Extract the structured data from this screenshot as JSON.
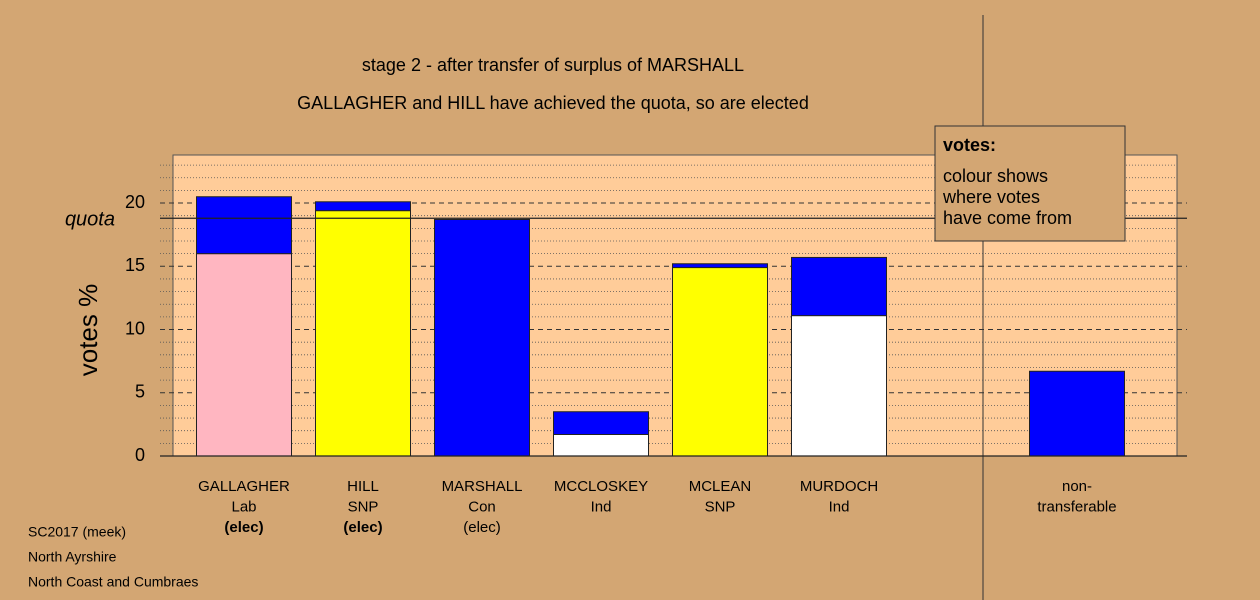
{
  "chart_data": {
    "type": "stacked_bar",
    "title": "stage 2 - after transfer of surplus of MARSHALL",
    "subtitle": "GALLAGHER and HILL have achieved the quota, so are elected",
    "y_label": "votes %",
    "ylim": [
      0,
      23.8
    ],
    "yticks": [
      0,
      5,
      10,
      15,
      20
    ],
    "minor_yticks": [
      1,
      2,
      3,
      4,
      6,
      7,
      8,
      9,
      11,
      12,
      13,
      14,
      16,
      17,
      18,
      19,
      21,
      22,
      23
    ],
    "grid": true,
    "quota": {
      "label": "quota",
      "value": 18.8
    },
    "categories": [
      {
        "lines": [
          "GALLAGHER",
          "Lab",
          "(elec)"
        ],
        "bold_last": true
      },
      {
        "lines": [
          "HILL",
          "SNP",
          "(elec)"
        ],
        "bold_last": true
      },
      {
        "lines": [
          "MARSHALL",
          "Con",
          "(elec)"
        ],
        "bold_last": false
      },
      {
        "lines": [
          "MCCLOSKEY",
          "Ind"
        ],
        "bold_last": false
      },
      {
        "lines": [
          "MCLEAN",
          "SNP"
        ],
        "bold_last": false
      },
      {
        "lines": [
          "MURDOCH",
          "Ind"
        ],
        "bold_last": false
      },
      {
        "lines": [
          "non-",
          "transferable"
        ],
        "bold_last": false,
        "separated": true
      }
    ],
    "stacks": [
      {
        "segments": [
          {
            "value": 16.0,
            "color": "#FFB6C1"
          },
          {
            "value": 4.5,
            "color": "#0000FF"
          }
        ]
      },
      {
        "segments": [
          {
            "value": 19.4,
            "color": "#FFFF00"
          },
          {
            "value": 0.7,
            "color": "#0000FF"
          }
        ]
      },
      {
        "segments": [
          {
            "value": 18.7,
            "color": "#0000FF"
          }
        ]
      },
      {
        "segments": [
          {
            "value": 1.7,
            "color": "#FFFFFF"
          },
          {
            "value": 1.8,
            "color": "#0000FF"
          }
        ]
      },
      {
        "segments": [
          {
            "value": 14.9,
            "color": "#FFFF00"
          },
          {
            "value": 0.3,
            "color": "#0000FF"
          }
        ]
      },
      {
        "segments": [
          {
            "value": 11.1,
            "color": "#FFFFFF"
          },
          {
            "value": 4.6,
            "color": "#0000FF"
          }
        ]
      },
      {
        "segments": [
          {
            "value": 6.7,
            "color": "#0000FF"
          }
        ]
      }
    ],
    "legend": {
      "title": "votes:",
      "lines": [
        "colour shows",
        "where votes",
        "have come from"
      ]
    },
    "footer": [
      "SC2017 (meek)",
      "North Ayrshire",
      "North Coast and Cumbraes"
    ]
  }
}
